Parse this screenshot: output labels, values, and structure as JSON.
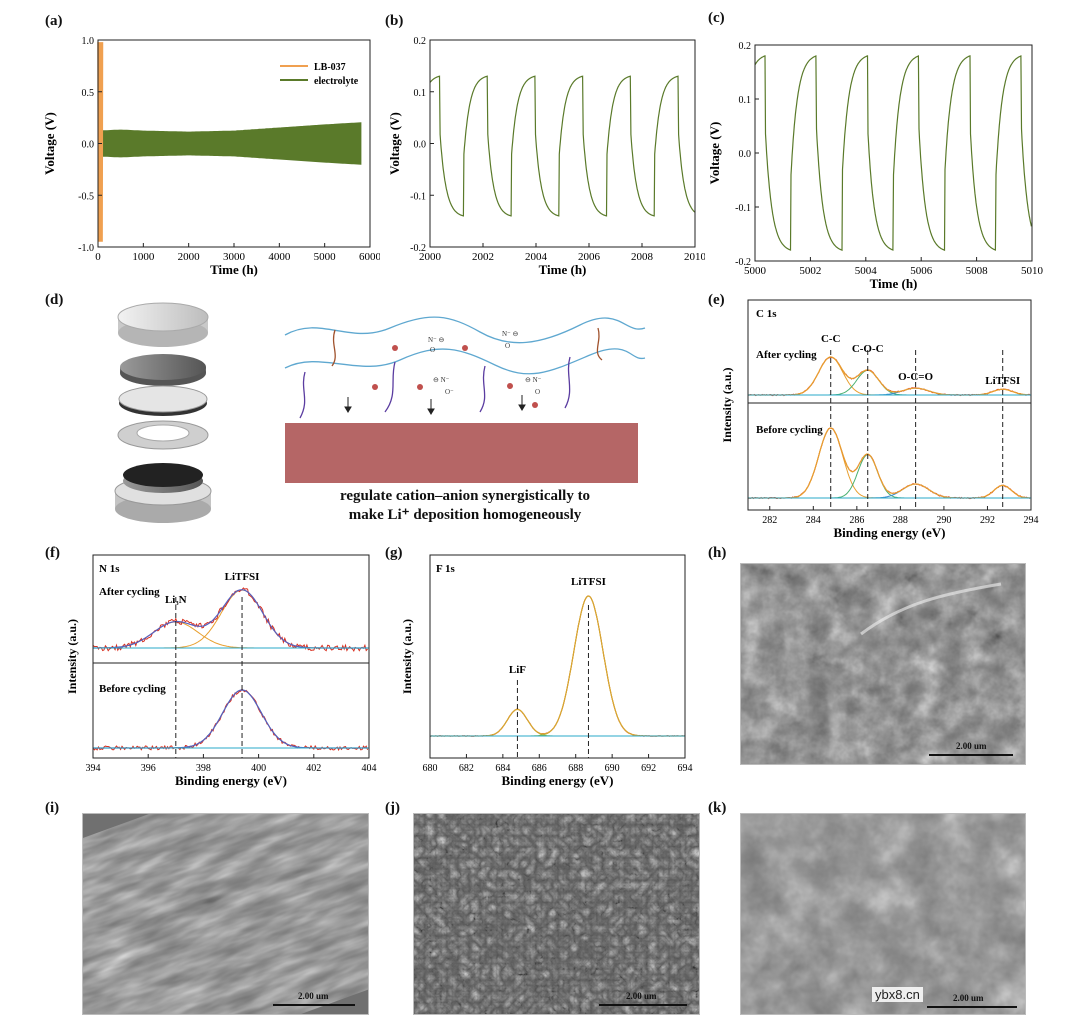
{
  "panels": {
    "a": "(a)",
    "b": "(b)",
    "c": "(c)",
    "d": "(d)",
    "e": "(e)",
    "f": "(f)",
    "g": "(g)",
    "h": "(h)",
    "i": "(i)",
    "j": "(j)",
    "k": "(k)"
  },
  "diagram": {
    "caption_line1": "regulate cation–anion synergistically to",
    "caption_line2": "make Li⁺ deposition homogeneously"
  },
  "sem": {
    "h_scale": "2.00 um",
    "i_scale": "2.00 um",
    "j_scale": "2.00 um",
    "k_scale": "2.00 um"
  },
  "watermark": "ybx8.cn",
  "colors": {
    "orange": "#f0a050",
    "green": "#5a7a2a",
    "red": "#d83020",
    "blue": "#3a8ad0",
    "ortho": "#e8a030",
    "lightgreen": "#4ab070"
  },
  "chart_data": [
    {
      "id": "a",
      "type": "line",
      "xlabel": "Time (h)",
      "ylabel": "Voltage (V)",
      "xlim": [
        0,
        6000
      ],
      "ylim": [
        -1.0,
        1.0
      ],
      "xticks": [
        0,
        1000,
        2000,
        3000,
        4000,
        5000,
        6000
      ],
      "yticks": [
        -1.0,
        -0.5,
        0.0,
        0.5,
        1.0
      ],
      "ytick_labels": [
        "-1.0",
        "-0.5",
        "0.0",
        "0.5",
        "1.0"
      ],
      "legend": "top-right",
      "series": [
        {
          "name": "LB-037",
          "color": "#f0a050",
          "note_x": [
            0,
            100
          ]
        },
        {
          "name": "electrolyte",
          "color": "#5a7a2a",
          "envelope_x": [
            0,
            500,
            1000,
            2000,
            3000,
            4000,
            5000,
            5800
          ],
          "envelope_y": [
            0.12,
            0.13,
            0.12,
            0.11,
            0.12,
            0.15,
            0.18,
            0.2
          ]
        }
      ]
    },
    {
      "id": "b",
      "type": "line",
      "xlabel": "Time (h)",
      "ylabel": "Voltage (V)",
      "xlim": [
        2000,
        2010
      ],
      "ylim": [
        -0.2,
        0.2
      ],
      "xticks": [
        2000,
        2002,
        2004,
        2006,
        2008,
        2010
      ],
      "yticks": [
        -0.2,
        -0.1,
        0.0,
        0.1,
        0.2
      ],
      "ytick_labels": [
        "-0.2",
        "-0.1",
        "0.0",
        "0.1",
        "0.2"
      ],
      "cycle_start": 2000,
      "period": 1.8,
      "peak": 0.13,
      "trough": -0.14
    },
    {
      "id": "c",
      "type": "line",
      "xlabel": "Time (h)",
      "ylabel": "Voltage (V)",
      "xlim": [
        5000,
        5010
      ],
      "ylim": [
        -0.2,
        0.2
      ],
      "xticks": [
        5000,
        5002,
        5004,
        5006,
        5008,
        5010
      ],
      "yticks": [
        -0.2,
        -0.1,
        0.0,
        0.1,
        0.2
      ],
      "ytick_labels": [
        "-0.2",
        "-0.1",
        "0.0",
        "0.1",
        "0.2"
      ],
      "cycle_start": 5000,
      "period": 1.85,
      "peak": 0.18,
      "trough": -0.18
    },
    {
      "id": "e",
      "type": "line",
      "title": "C 1s",
      "xlabel": "Binding energy (eV)",
      "ylabel": "Intensity (a.u.)",
      "xlim": [
        281,
        294
      ],
      "xticks": [
        282,
        284,
        286,
        288,
        290,
        292,
        294
      ],
      "top_label": "After cycling",
      "bottom_label": "Before cycling",
      "peak_labels": [
        {
          "text": "C-C",
          "x": 284.8
        },
        {
          "text": "C-O-C",
          "x": 286.5
        },
        {
          "text": "O-C=O",
          "x": 288.7
        },
        {
          "text": "LiTFSI",
          "x": 292.7
        }
      ],
      "top_peaks": [
        [
          284.8,
          1.0,
          0.55
        ],
        [
          286.5,
          0.65,
          0.5
        ],
        [
          288.7,
          0.18,
          0.6
        ],
        [
          292.7,
          0.15,
          0.45
        ]
      ],
      "bottom_peaks": [
        [
          284.8,
          1.0,
          0.55
        ],
        [
          286.5,
          0.62,
          0.45
        ],
        [
          288.7,
          0.2,
          0.6
        ],
        [
          292.7,
          0.18,
          0.4
        ]
      ]
    },
    {
      "id": "f",
      "type": "line",
      "title": "N 1s",
      "xlabel": "Binding energy (eV)",
      "ylabel": "Intensity (a.u.)",
      "xlim": [
        394,
        404
      ],
      "xticks": [
        394,
        396,
        398,
        400,
        402,
        404
      ],
      "top_label": "After cycling",
      "bottom_label": "Before cycling",
      "peak_labels": [
        {
          "text": "Li₃N",
          "x": 397.0
        },
        {
          "text": "LiTFSI",
          "x": 399.4
        }
      ],
      "top_peaks": [
        [
          397.0,
          0.45,
          0.8
        ],
        [
          399.4,
          1.0,
          0.75
        ]
      ],
      "bottom_peaks": [
        [
          399.4,
          1.0,
          0.7
        ]
      ]
    },
    {
      "id": "g",
      "type": "line",
      "title": "F 1s",
      "xlabel": "Binding energy (eV)",
      "ylabel": "Intensity (a.u.)",
      "xlim": [
        680,
        694
      ],
      "xticks": [
        680,
        682,
        684,
        686,
        688,
        690,
        692,
        694
      ],
      "peak_labels": [
        {
          "text": "LiF",
          "x": 684.8
        },
        {
          "text": "LiTFSI",
          "x": 688.7
        }
      ],
      "peaks": [
        [
          684.8,
          0.19,
          0.55
        ],
        [
          688.7,
          1.0,
          0.8
        ]
      ]
    }
  ]
}
